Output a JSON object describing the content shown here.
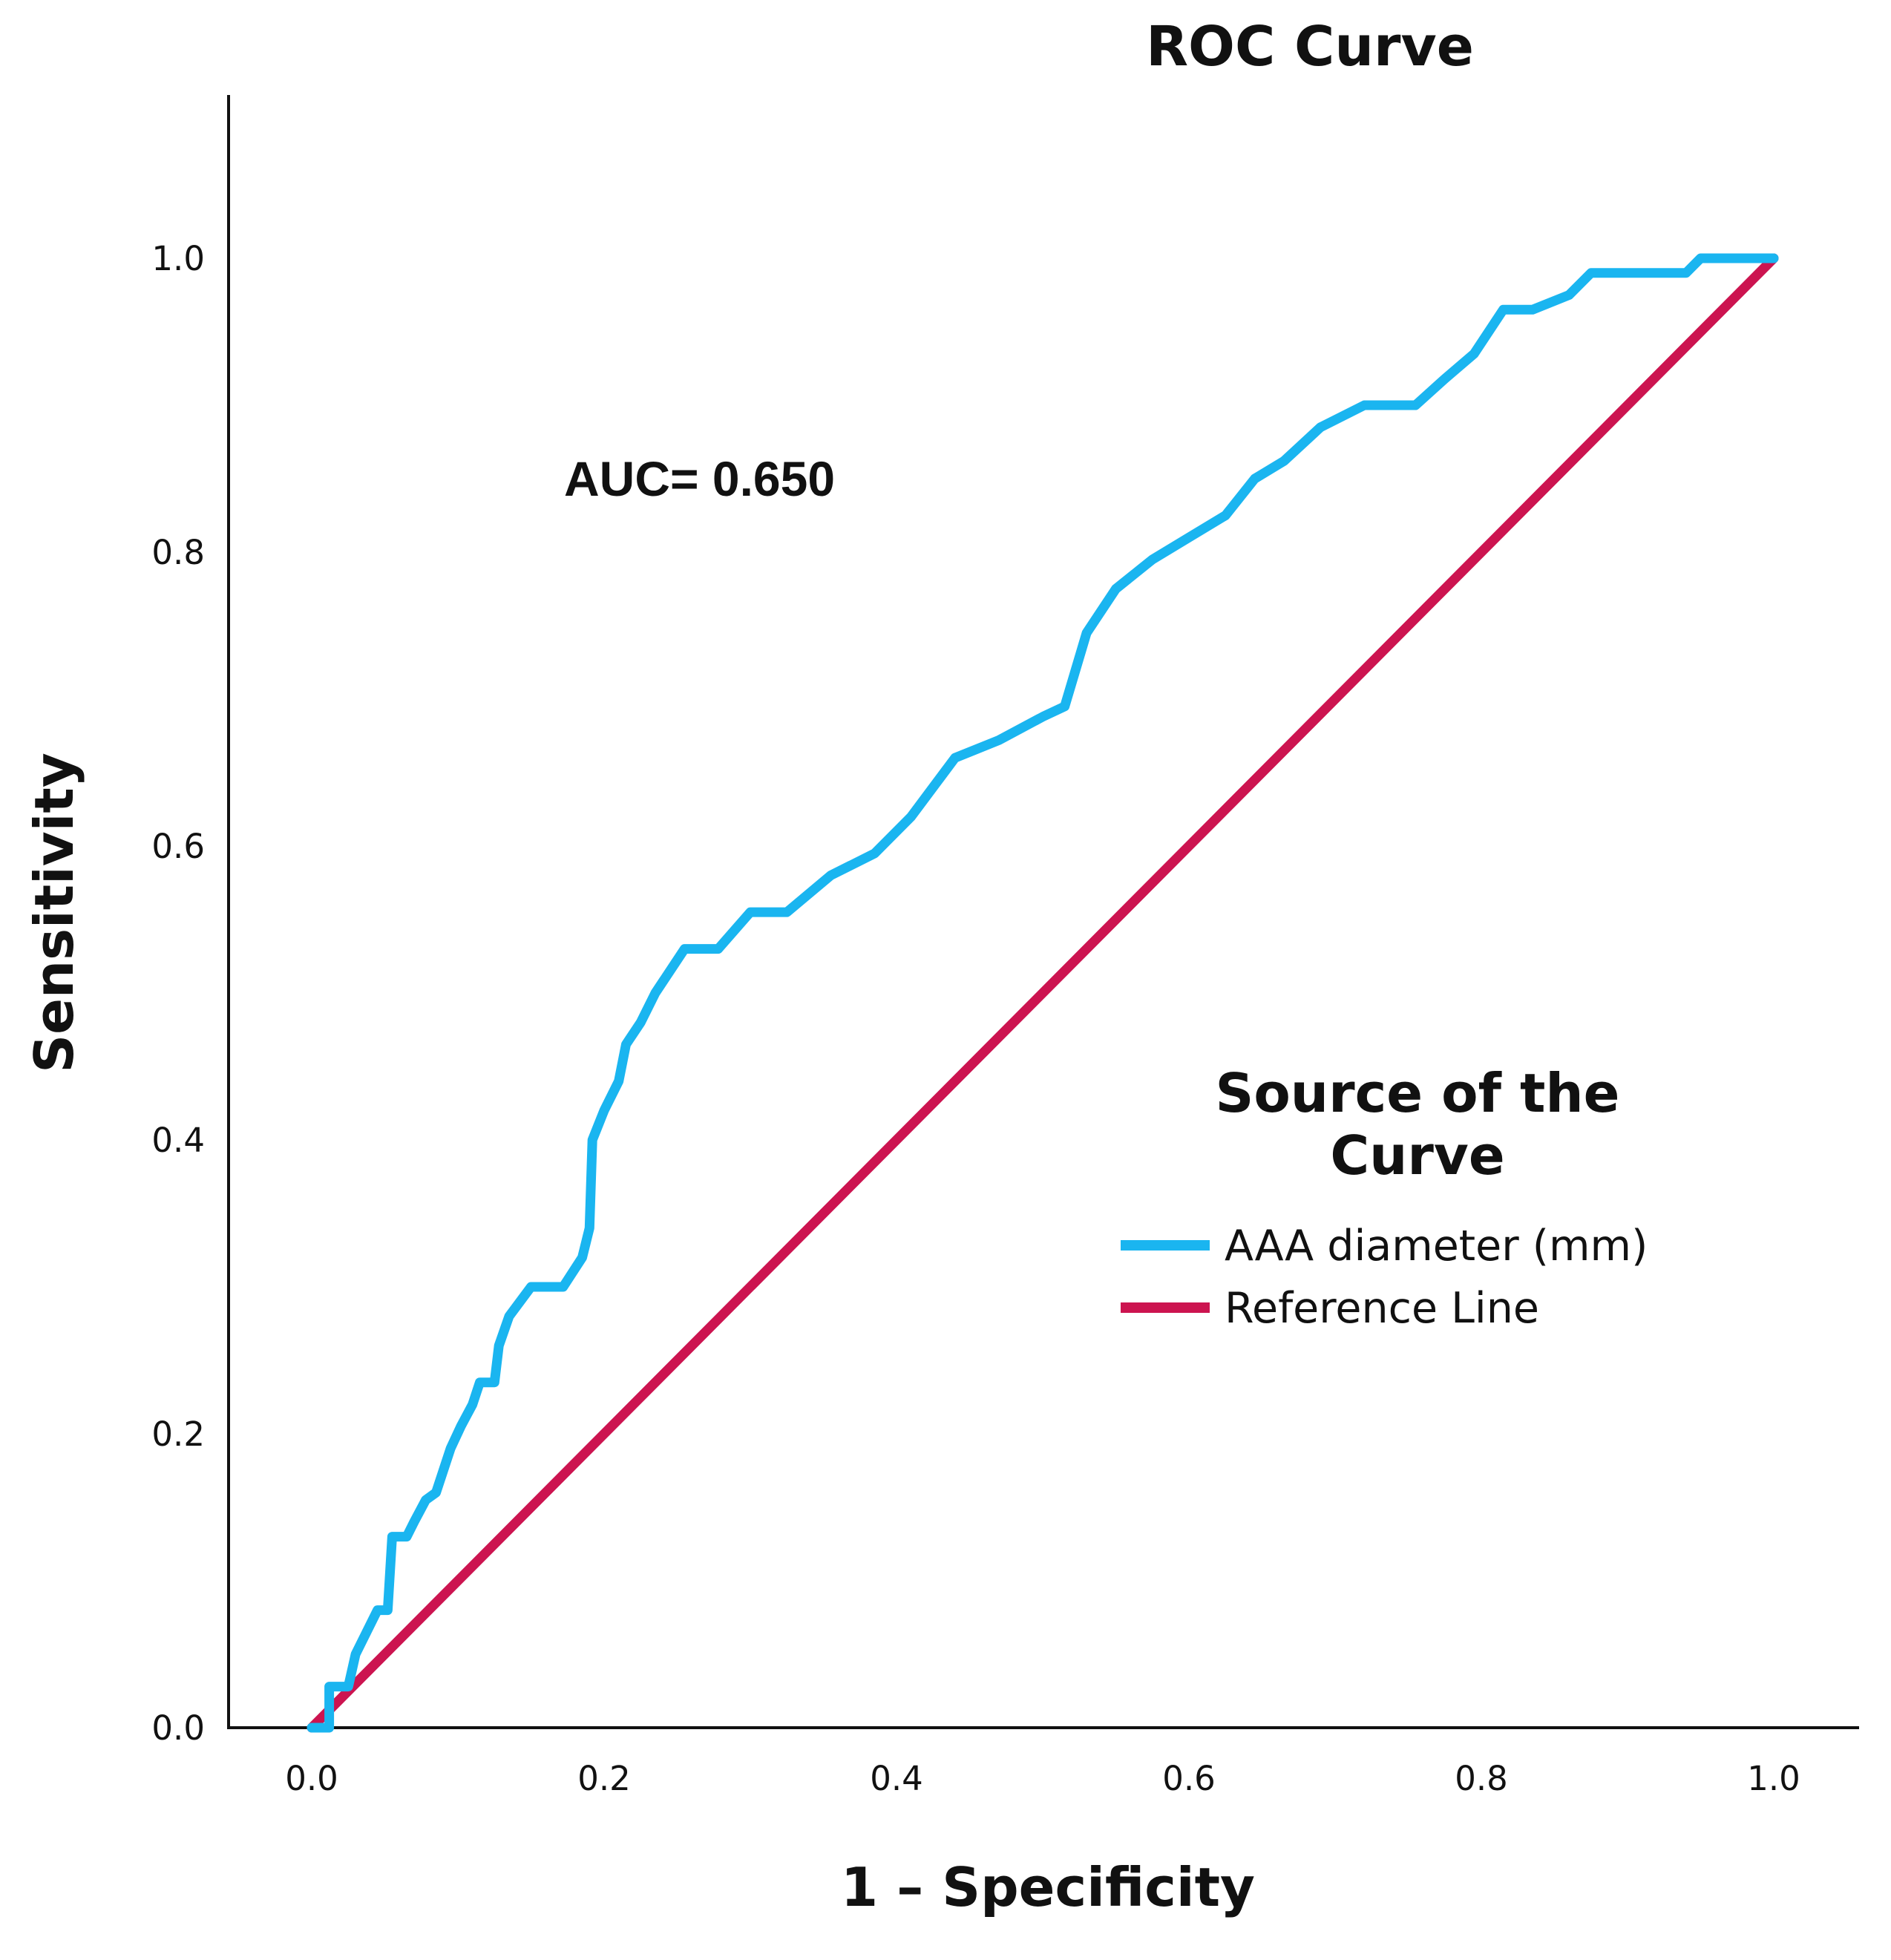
{
  "chart_data": {
    "type": "line",
    "title": "ROC Curve",
    "xlabel": "1 – Specificity",
    "ylabel": "Sensitivity",
    "xlim": [
      0,
      1
    ],
    "ylim": [
      0,
      1.12
    ],
    "xticks": [
      "0.0",
      "0.2",
      "0.4",
      "0.6",
      "0.8",
      "1.0"
    ],
    "yticks": [
      "0.0",
      "0.2",
      "0.4",
      "0.6",
      "0.8",
      "1.0"
    ],
    "grid": false,
    "annotation": "AUC= 0.650",
    "legend": {
      "title_lines": [
        "Source of the",
        "Curve"
      ],
      "placement": "right-middle"
    },
    "series": [
      {
        "name": "AAA diameter (mm)",
        "color": "#1ab5f0",
        "x": [
          0.0,
          0.012,
          0.012,
          0.025,
          0.03,
          0.045,
          0.05,
          0.052,
          0.055,
          0.058,
          0.06,
          0.065,
          0.07,
          0.078,
          0.085,
          0.095,
          0.102,
          0.11,
          0.115,
          0.125,
          0.128,
          0.135,
          0.15,
          0.172,
          0.185,
          0.19,
          0.192,
          0.2,
          0.21,
          0.215,
          0.225,
          0.235,
          0.255,
          0.278,
          0.3,
          0.325,
          0.355,
          0.385,
          0.41,
          0.44,
          0.47,
          0.5,
          0.515,
          0.53,
          0.55,
          0.575,
          0.6,
          0.625,
          0.645,
          0.665,
          0.69,
          0.72,
          0.755,
          0.775,
          0.795,
          0.815,
          0.835,
          0.86,
          0.875,
          0.9,
          0.94,
          0.95,
          0.96,
          1.0
        ],
        "y": [
          0.0,
          0.0,
          0.028,
          0.028,
          0.05,
          0.08,
          0.08,
          0.08,
          0.13,
          0.13,
          0.13,
          0.13,
          0.14,
          0.155,
          0.16,
          0.19,
          0.205,
          0.22,
          0.235,
          0.235,
          0.26,
          0.28,
          0.3,
          0.3,
          0.32,
          0.34,
          0.4,
          0.42,
          0.44,
          0.465,
          0.48,
          0.5,
          0.53,
          0.53,
          0.555,
          0.555,
          0.58,
          0.595,
          0.62,
          0.66,
          0.672,
          0.688,
          0.695,
          0.745,
          0.775,
          0.795,
          0.81,
          0.825,
          0.85,
          0.862,
          0.885,
          0.9,
          0.9,
          0.918,
          0.935,
          0.965,
          0.965,
          0.975,
          0.99,
          0.99,
          0.99,
          1.0,
          1.0,
          1.0
        ]
      },
      {
        "name": "Reference Line",
        "color": "#cc1450",
        "x": [
          0,
          1
        ],
        "y": [
          0,
          1
        ]
      }
    ]
  }
}
